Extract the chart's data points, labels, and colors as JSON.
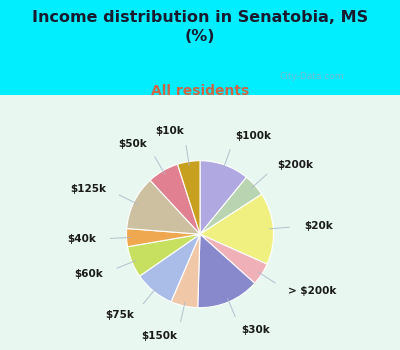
{
  "title": "Income distribution in Senatobia, MS\n(%)",
  "subtitle": "All residents",
  "title_color": "#1a1a2e",
  "subtitle_color": "#cc6644",
  "bg_color": "#00eeff",
  "labels": [
    "$100k",
    "$200k",
    "$20k",
    "> $200k",
    "$30k",
    "$150k",
    "$75k",
    "$60k",
    "$40k",
    "$125k",
    "$50k",
    "$10k"
  ],
  "values": [
    11,
    5,
    16,
    5,
    14,
    6,
    9,
    7,
    4,
    12,
    7,
    5
  ],
  "colors": [
    "#b0a8e0",
    "#b8d4b0",
    "#f0f080",
    "#f0b0b8",
    "#8888cc",
    "#f0c8a8",
    "#aabce8",
    "#c8e060",
    "#f0a850",
    "#ccc0a0",
    "#e08090",
    "#c8a020"
  ],
  "startangle": 90
}
